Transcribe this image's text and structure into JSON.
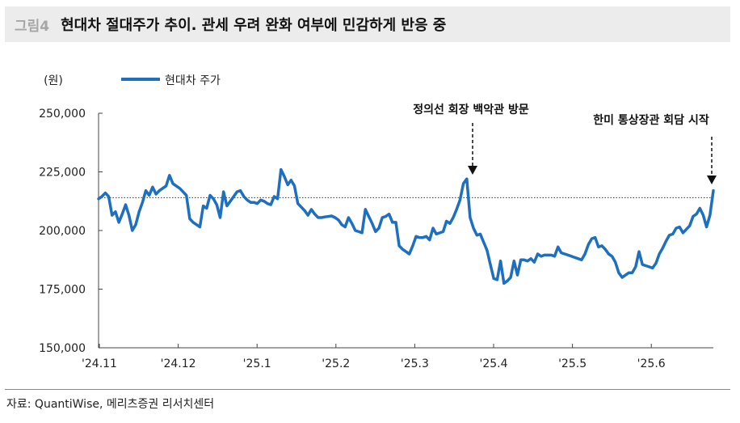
{
  "header": {
    "figure_label": "그림4",
    "title": "현대차 절대주가 추이. 관세 우려 완화 여부에 민감하게 반응 중"
  },
  "footer": {
    "source": "자료: QuantiWise, 메리츠증권 리서치센터"
  },
  "chart_data": {
    "type": "line",
    "ylabel": "(원)",
    "ylim": [
      150000,
      250000
    ],
    "yticks": [
      150000,
      175000,
      200000,
      225000,
      250000
    ],
    "ytick_labels": [
      "150,000",
      "175,000",
      "200,000",
      "225,000",
      "250,000"
    ],
    "x_tick_labels": [
      "'24.11",
      "'24.12",
      "'25.1",
      "'25.2",
      "'25.3",
      "'25.4",
      "'25.5",
      "'25.6"
    ],
    "legend": {
      "position": "top-left"
    },
    "grid": false,
    "reference_line": {
      "value": 214000,
      "style": "dotted"
    },
    "series": [
      {
        "name": "현대차 주가",
        "color": "#1f6fbf",
        "values": [
          213500,
          214500,
          216000,
          214500,
          206500,
          208000,
          203500,
          207000,
          211000,
          206500,
          200000,
          202500,
          208000,
          212000,
          217000,
          215000,
          218500,
          215500,
          217000,
          218000,
          219000,
          223500,
          220000,
          219000,
          218000,
          216500,
          215000,
          205000,
          203500,
          202500,
          201500,
          210500,
          209500,
          215000,
          213500,
          211000,
          205500,
          216500,
          210500,
          212500,
          214500,
          216500,
          217000,
          214500,
          213000,
          212000,
          212000,
          211500,
          213000,
          212500,
          211500,
          211000,
          214500,
          213500,
          226000,
          223000,
          219500,
          221500,
          219000,
          211500,
          210000,
          208500,
          206500,
          209000,
          207000,
          205500,
          205500,
          205800,
          206000,
          206200,
          205500,
          204500,
          202500,
          201500,
          205500,
          203000,
          200000,
          199500,
          199000,
          209000,
          206000,
          203000,
          199500,
          201000,
          205500,
          206000,
          207000,
          203500,
          203500,
          193500,
          192000,
          191000,
          190000,
          193500,
          197500,
          197000,
          197000,
          197500,
          196000,
          201000,
          198500,
          199000,
          199500,
          204000,
          203000,
          205500,
          209000,
          213000,
          220000,
          222000,
          205500,
          201000,
          198000,
          198500,
          195000,
          191500,
          185500,
          179500,
          179000,
          187000,
          177500,
          178500,
          180000,
          187000,
          181000,
          187500,
          187500,
          187000,
          188000,
          186500,
          190000,
          189000,
          189500,
          189500,
          189500,
          189000,
          193000,
          190500,
          190000,
          189500,
          189000,
          188500,
          188000,
          187500,
          190000,
          194000,
          196500,
          197000,
          193000,
          193500,
          192000,
          190000,
          189000,
          186500,
          182000,
          180000,
          181000,
          182000,
          182000,
          184500,
          191000,
          185500,
          185000,
          184500,
          184000,
          186000,
          190000,
          192500,
          195500,
          198000,
          198500,
          201000,
          201500,
          199000,
          200500,
          202000,
          206000,
          207000,
          209500,
          206500,
          201500,
          206500,
          217000
        ]
      }
    ],
    "annotations": [
      {
        "text": "정의선 회장 백악관 방문"
      },
      {
        "text": "한미 통상장관 회담 시작"
      }
    ]
  }
}
